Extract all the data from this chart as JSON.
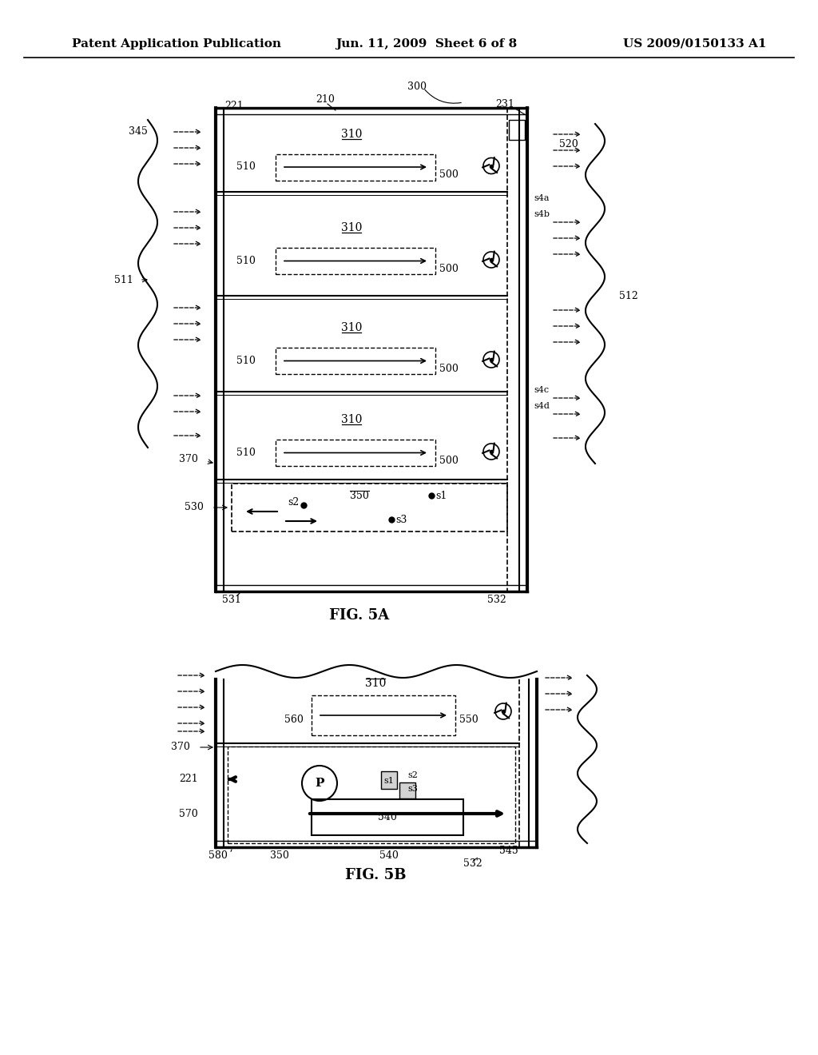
{
  "bg_color": "#ffffff",
  "header_left": "Patent Application Publication",
  "header_mid": "Jun. 11, 2009  Sheet 6 of 8",
  "header_right": "US 2009/0150133 A1",
  "fig5a_label": "FIG. 5A",
  "fig5b_label": "FIG. 5B"
}
